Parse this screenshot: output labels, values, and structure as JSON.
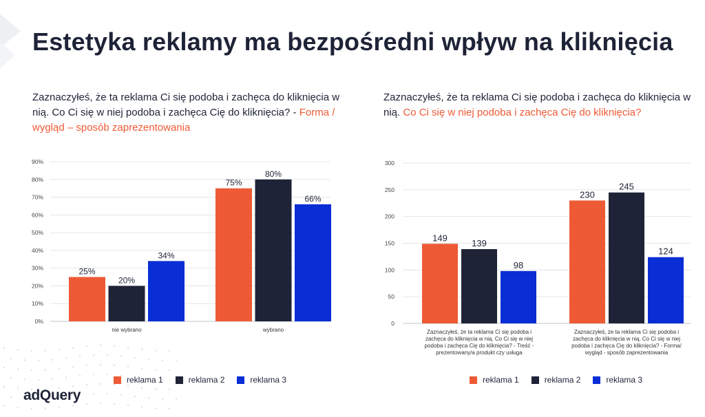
{
  "page": {
    "title": "Estetyka reklamy ma bezpośredni wpływ na kliknięcia",
    "logo": "adQuery"
  },
  "colors": {
    "series": [
      "#ee5a35",
      "#1e2337",
      "#0a2ed6"
    ],
    "accent": "#ee5a35",
    "text": "#1e2337"
  },
  "left": {
    "subtitle_plain": "Zaznaczyłeś, że ta reklama Ci się podoba i zachęca do kliknięcia w nią. Co Ci się w niej podoba i zachęca Cię do kliknięcia? - ",
    "subtitle_highlight": "Forma / wygląd  – sposób zaprezentowania"
  },
  "right": {
    "subtitle_plain": "Zaznaczyłeś, że ta reklama Ci się podoba i zachęca do kliknięcia w nią. ",
    "subtitle_highlight": "Co Ci się w niej podoba i zachęca Cię do kliknięcia?"
  },
  "chart_data": [
    {
      "type": "bar",
      "categories": [
        "nie wybrano",
        "wybrano"
      ],
      "series": [
        {
          "name": "reklama 1",
          "values": [
            25,
            75
          ],
          "labels": [
            "25%",
            "75%"
          ]
        },
        {
          "name": "reklama 2",
          "values": [
            20,
            80
          ],
          "labels": [
            "20%",
            "80%"
          ]
        },
        {
          "name": "reklama 3",
          "values": [
            34,
            66
          ],
          "labels": [
            "34%",
            "66%"
          ]
        }
      ],
      "ylim": [
        0,
        90
      ],
      "yticks": [
        0,
        10,
        20,
        30,
        40,
        50,
        60,
        70,
        80,
        90
      ],
      "ytick_labels": [
        "0%",
        "10%",
        "20%",
        "30%",
        "40%",
        "50%",
        "60%",
        "70%",
        "80%",
        "90%"
      ],
      "grid": true,
      "legend_position": "bottom"
    },
    {
      "type": "bar",
      "categories": [
        [
          "Zaznaczyłeś, że ta reklama Ci się podoba i",
          "zachęca do kliknięcia w nią. Co Ci się w niej",
          "podoba i zachęca Cię do kliknięcia? - Treść -",
          "prezentowany/a produkt czy usługa"
        ],
        [
          "Zaznaczyłeś, że ta reklama Ci się podoba i",
          "zachęca do kliknięcia w nią. Co Ci się w niej",
          "podoba i zachęca Cię do kliknięcia? - Forma/",
          "wygląd - sposób zaprezentowania"
        ]
      ],
      "series": [
        {
          "name": "reklama 1",
          "values": [
            149,
            230
          ],
          "labels": [
            "149",
            "230"
          ]
        },
        {
          "name": "reklama 2",
          "values": [
            139,
            245
          ],
          "labels": [
            "139",
            "245"
          ]
        },
        {
          "name": "reklama 3",
          "values": [
            98,
            124
          ],
          "labels": [
            "98",
            "124"
          ]
        }
      ],
      "ylim": [
        0,
        300
      ],
      "yticks": [
        0,
        50,
        100,
        150,
        200,
        250,
        300
      ],
      "ytick_labels": [
        "0",
        "50",
        "100",
        "150",
        "200",
        "250",
        "300"
      ],
      "grid": true,
      "legend_position": "bottom"
    }
  ]
}
